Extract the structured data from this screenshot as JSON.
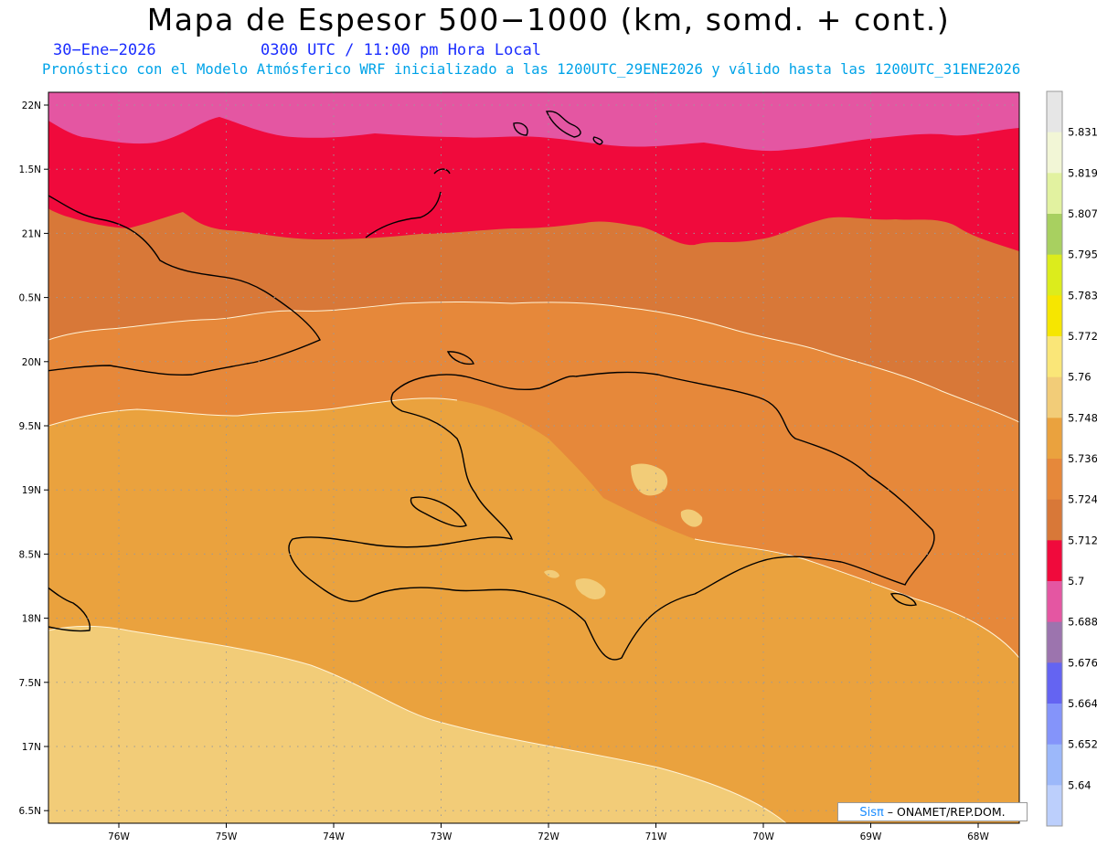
{
  "title": "Mapa de Espesor 500−1000 (km, somd. + cont.)",
  "date": "30−Ene−2026",
  "time": "0300 UTC / 11:00 pm Hora Local",
  "subtitle": "Pronóstico con el Modelo Atmósferico WRF inicializado a las 1200UTC_29ENE2026 y válido hasta las  1200UTC_31ENE2026",
  "credit": {
    "brand": "Sisπ",
    "org": " – ONAMET/REP.DOM."
  },
  "lat_labels": [
    "22N",
    "1.5N",
    "21N",
    "0.5N",
    "20N",
    "9.5N",
    "19N",
    "8.5N",
    "18N",
    "7.5N",
    "17N",
    "6.5N"
  ],
  "lon_labels": [
    "76W",
    "75W",
    "74W",
    "73W",
    "72W",
    "71W",
    "70W",
    "69W",
    "68W"
  ],
  "colorbar": {
    "labels": [
      "5.831",
      "5.819",
      "5.807",
      "5.795",
      "5.783",
      "5.772",
      "5.76",
      "5.748",
      "5.736",
      "5.724",
      "5.712",
      "5.7",
      "5.688",
      "5.676",
      "5.664",
      "5.652",
      "5.64"
    ],
    "colors": [
      "#e6e6e6",
      "#f2f6d6",
      "#e2f2a0",
      "#a8d060",
      "#dcec1c",
      "#f6e600",
      "#fae678",
      "#f2cc78",
      "#eaa23e",
      "#e6883a",
      "#d87838",
      "#f00a3c",
      "#e456a2",
      "#9c74ae",
      "#6464f2",
      "#8494fa",
      "#9cb8fa",
      "#bccffc"
    ]
  },
  "fills": {
    "bg_lightest": "#f2cc78",
    "bg_orange": "#eaa23e",
    "band_mid": "#e6883a",
    "band_dark": "#d87838",
    "band_red": "#f00a3c",
    "band_pink": "#e456a2"
  }
}
